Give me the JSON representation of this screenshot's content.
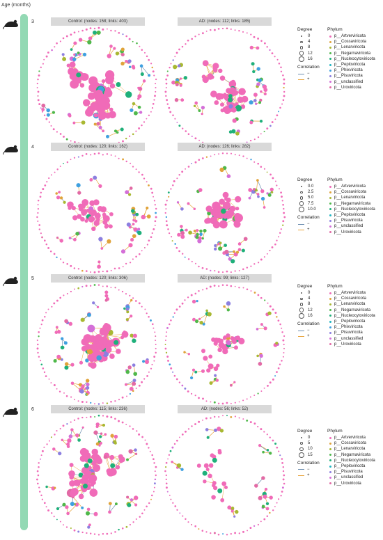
{
  "age_title": "Age (months)",
  "colors": {
    "timeline": "#93d9b4",
    "node_main": "#f06bb8",
    "edge_pos": "#e8a33a",
    "edge_neg": "#6a8caf",
    "hub": "#1fb07a"
  },
  "phylum_title": "Phylum",
  "degree_title": "Degree",
  "correlation_title": "Correlation",
  "correlation_items": [
    {
      "label": "−",
      "color": "#6a8caf"
    },
    {
      "label": "+",
      "color": "#e8a33a"
    }
  ],
  "phyla": [
    {
      "name": "p__Artverviricota",
      "color": "#f06bb8"
    },
    {
      "name": "p__Cossaviricota",
      "color": "#e0a33a"
    },
    {
      "name": "p__Lenarviricota",
      "color": "#a8b832"
    },
    {
      "name": "p__Negarnaviricota",
      "color": "#4fb84a"
    },
    {
      "name": "p__Nucleocytoviricota",
      "color": "#1fb07a"
    },
    {
      "name": "p__Peploviricota",
      "color": "#1fb5c2"
    },
    {
      "name": "p__Phixviricota",
      "color": "#3fa0e0"
    },
    {
      "name": "p__Pisuviricota",
      "color": "#8c7fe0"
    },
    {
      "name": "p__unclassified",
      "color": "#d46fd8"
    },
    {
      "name": "p__Uroviricota",
      "color": "#e26aa5"
    }
  ],
  "panels": [
    {
      "age": "3",
      "control_label": "Control: (nodes: 158; links: 403)",
      "ad_label": "AD: (nodes: 112; links: 185)",
      "degree_values": [
        "0",
        "4",
        "8",
        "12",
        "16"
      ],
      "phyla_shown": [
        "p__Artverviricota",
        "p__Cossaviricota",
        "p__Lenarviricota",
        "p__Negarnaviricota",
        "p__Nucleocytoviricota",
        "p__Peploviricota",
        "p__Phixviricota",
        "p__Pisuviricota",
        "p__unclassified",
        "p__Uroviricota"
      ]
    },
    {
      "age": "4",
      "control_label": "Control: (nodes: 120; links: 162)",
      "ad_label": "AD: (nodes: 126; links: 282)",
      "degree_values": [
        "0.0",
        "2.5",
        "5.0",
        "7.5",
        "10.0"
      ],
      "phyla_shown": [
        "p__Artverviricota",
        "p__Cossaviricota",
        "p__Lenarviricota",
        "p__Negarnaviricota",
        "p__Nucleocytoviricota",
        "p__Peploviricota",
        "p__Pisuviricota",
        "p__unclassified",
        "p__Uroviricota"
      ]
    },
    {
      "age": "5",
      "control_label": "Control: (nodes: 120; links: 306)",
      "ad_label": "AD: (nodes: 99; links: 127)",
      "degree_values": [
        "0",
        "4",
        "8",
        "12",
        "16"
      ],
      "phyla_shown": [
        "p__Artverviricota",
        "p__Cossaviricota",
        "p__Lenarviricota",
        "p__Negarnaviricota",
        "p__Nucleocytoviricota",
        "p__Peploviricota",
        "p__Phixviricota",
        "p__Pisuviricota",
        "p__unclassified",
        "p__Uroviricota"
      ]
    },
    {
      "age": "6",
      "control_label": "Control: (nodes: 115; links: 236)",
      "ad_label": "AD: (nodes: 56; links: 52)",
      "degree_values": [
        "0",
        "5",
        "10",
        "15"
      ],
      "phyla_shown": [
        "p__Artverviricota",
        "p__Cossaviricota",
        "p__Lenarviricota",
        "p__Negarnaviricota",
        "p__Nucleocytoviricota",
        "p__Peploviricota",
        "p__Pisuviricota",
        "p__unclassified",
        "p__Uroviricota"
      ]
    }
  ]
}
